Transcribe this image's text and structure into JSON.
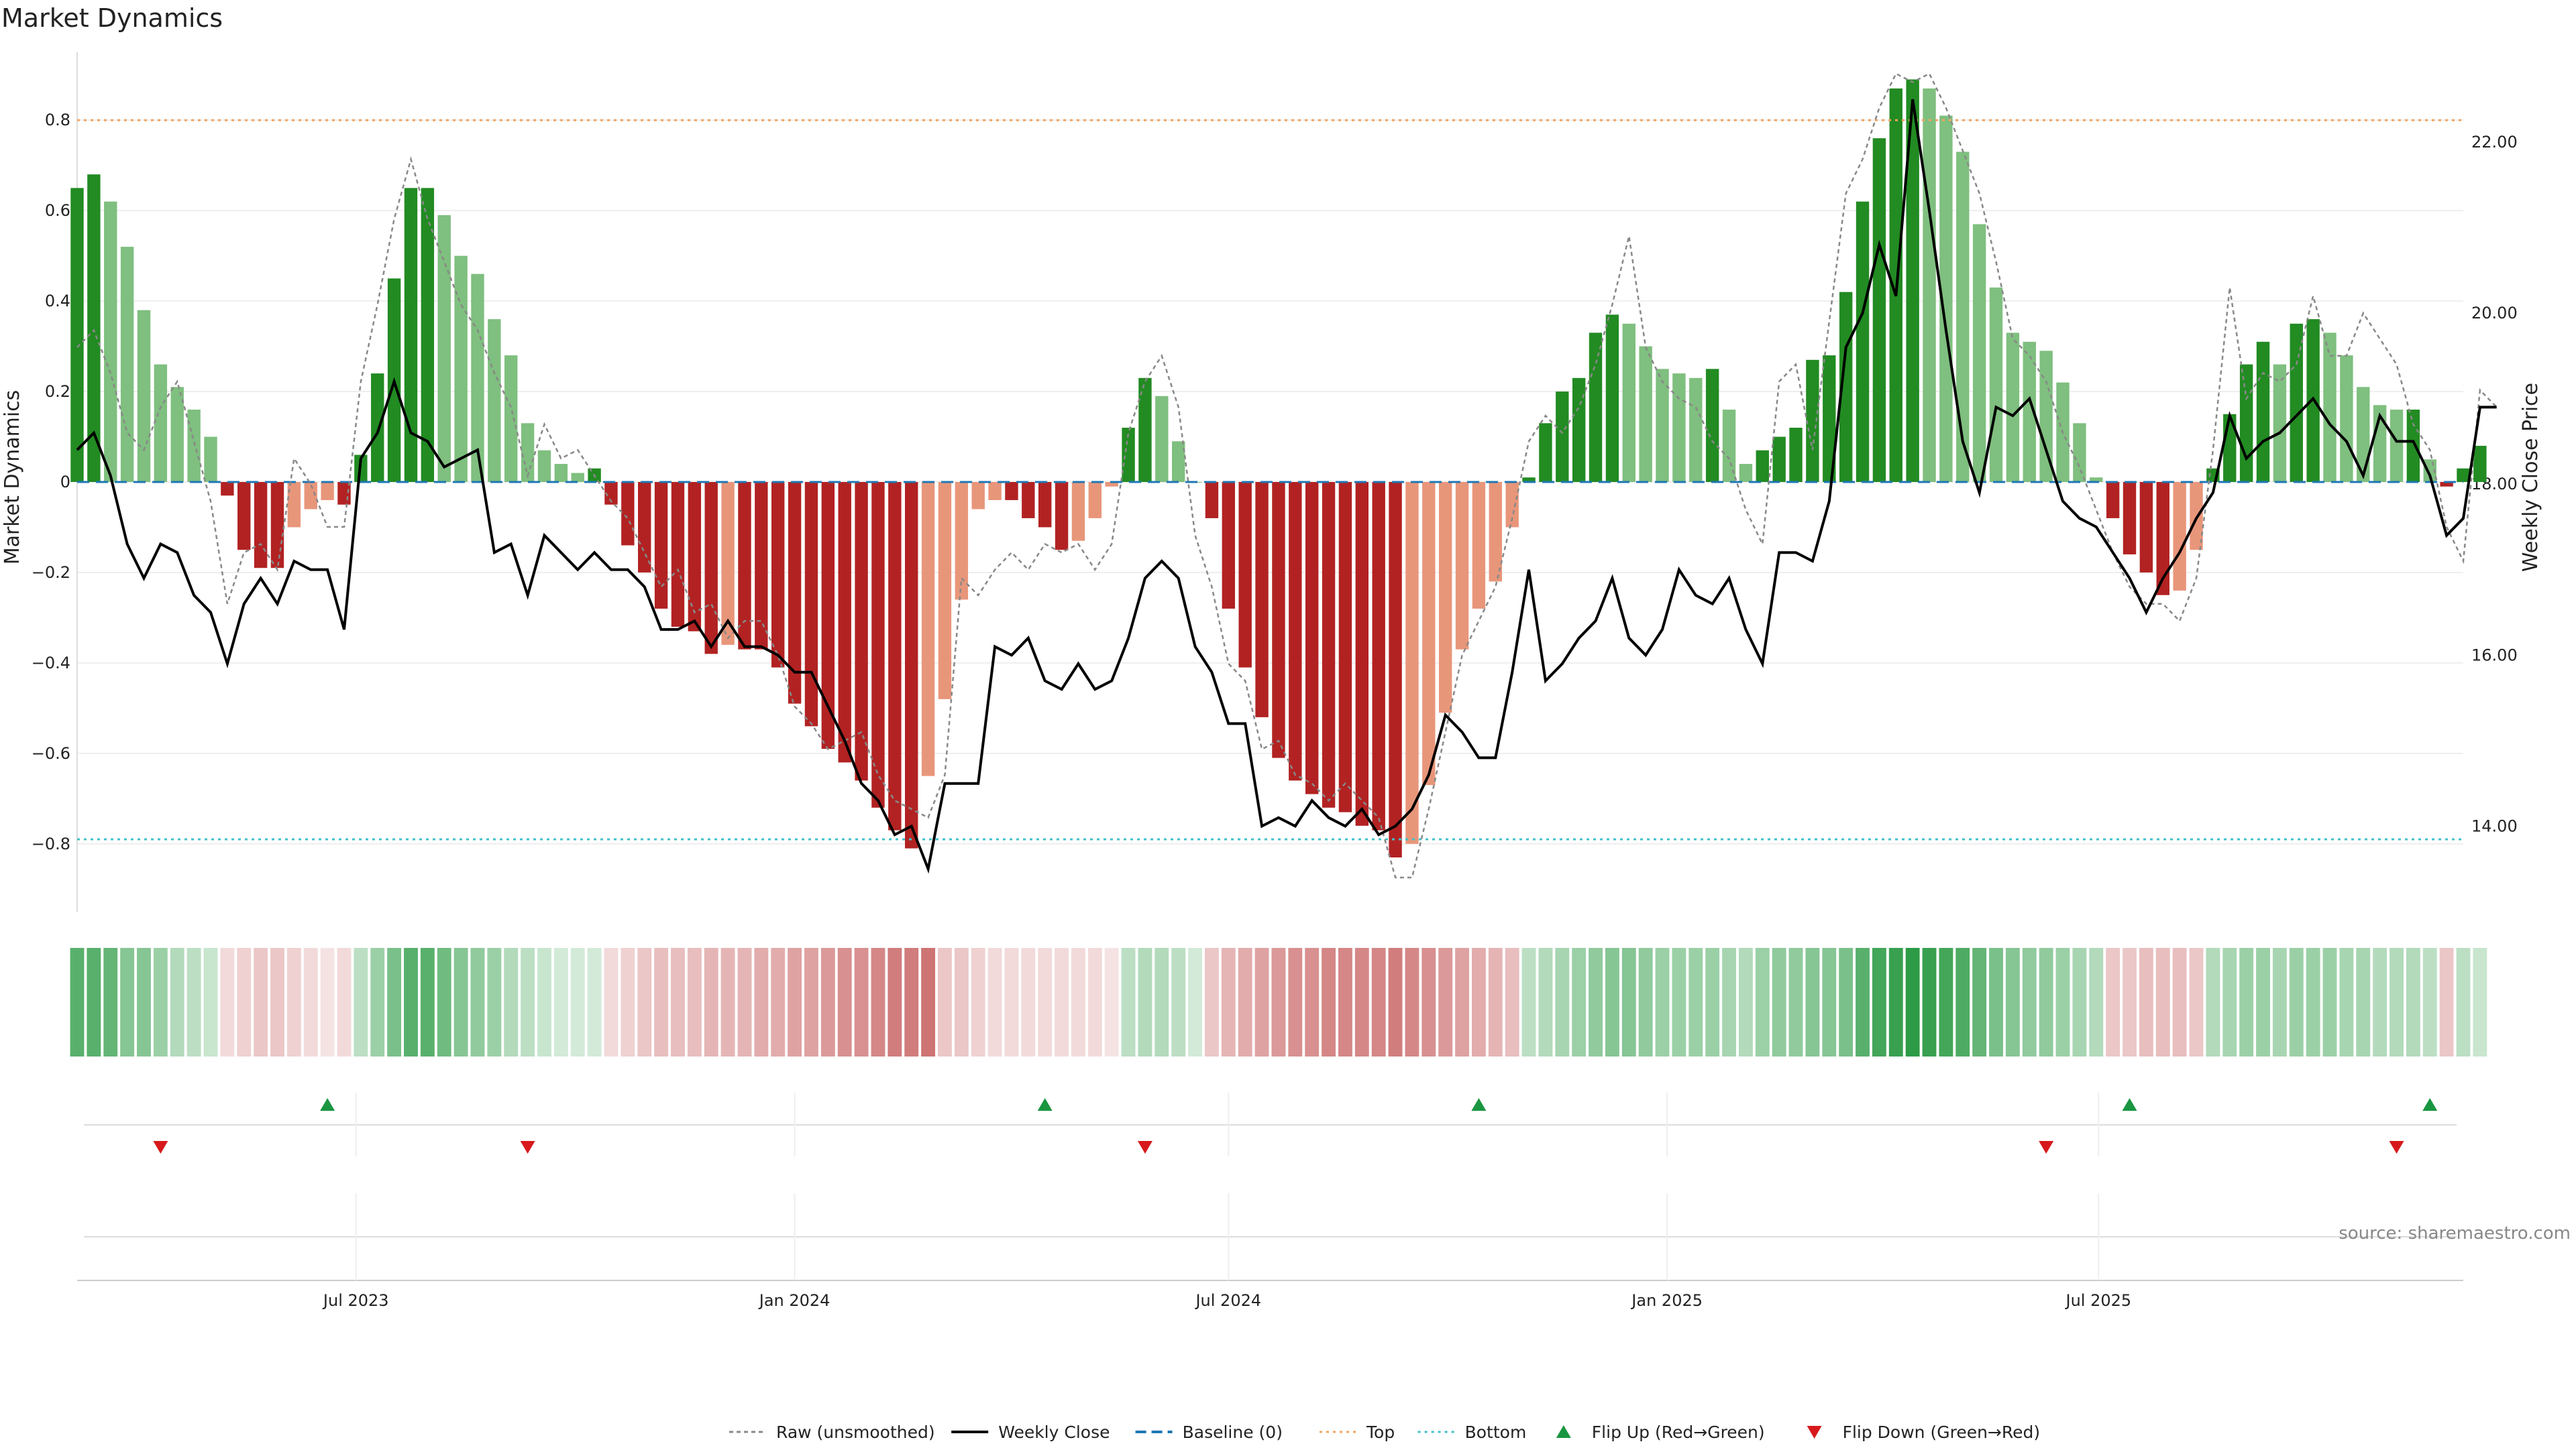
{
  "title": "Market Dynamics",
  "source_label": "source: sharemaestro.com",
  "colors": {
    "strong_green": "#228b22",
    "light_green": "#7fbf7f",
    "strong_red": "#b22222",
    "light_red": "#e8967a",
    "weekly_close": "#000000",
    "raw": "#888888",
    "baseline": "#1f77b4",
    "top": "#f4a460",
    "bottom": "#40c0c8",
    "flip_up": "#1a9641",
    "flip_down": "#d7191c"
  },
  "chart_data": {
    "type": "bar",
    "title": "Market Dynamics",
    "ylabel": "Market Dynamics",
    "y2label": "Weekly Close Price",
    "ylim": [
      -0.95,
      0.95
    ],
    "y2lim": [
      13.0,
      23.05
    ],
    "yticks": [
      -0.8,
      -0.6,
      -0.4,
      -0.2,
      0,
      0.2,
      0.4,
      0.6,
      0.8
    ],
    "ytick_labels": [
      "−0.8",
      "−0.6",
      "−0.4",
      "−0.2",
      "0",
      "0.2",
      "0.4",
      "0.6",
      "0.8"
    ],
    "y2ticks": [
      14,
      16,
      18,
      20,
      22
    ],
    "y2tick_labels": [
      "14.00",
      "16.00",
      "18.00",
      "20.00",
      "22.00"
    ],
    "x_start": "2023-03-06",
    "xtick_labels": [
      "Jul 2023",
      "Jan 2024",
      "Jul 2024",
      "Jan 2025",
      "Jul 2025"
    ],
    "xticks": [
      "2023-07-01",
      "2024-01-01",
      "2024-07-01",
      "2025-01-01",
      "2025-07-01"
    ],
    "x_end": "2025-12-01",
    "top_line": 0.8,
    "bottom_line": -0.79,
    "baseline": 0,
    "dynamics": [
      0.65,
      0.68,
      0.62,
      0.52,
      0.38,
      0.26,
      0.21,
      0.16,
      0.1,
      -0.03,
      -0.15,
      -0.19,
      -0.19,
      -0.1,
      -0.06,
      -0.04,
      -0.05,
      0.06,
      0.24,
      0.45,
      0.65,
      0.65,
      0.59,
      0.5,
      0.46,
      0.36,
      0.28,
      0.13,
      0.07,
      0.04,
      0.02,
      0.03,
      -0.05,
      -0.14,
      -0.2,
      -0.28,
      -0.32,
      -0.33,
      -0.38,
      -0.36,
      -0.37,
      -0.37,
      -0.41,
      -0.49,
      -0.54,
      -0.59,
      -0.62,
      -0.66,
      -0.72,
      -0.77,
      -0.81,
      -0.65,
      -0.48,
      -0.26,
      -0.06,
      -0.04,
      -0.04,
      -0.08,
      -0.1,
      -0.15,
      -0.13,
      -0.08,
      -0.01,
      0.12,
      0.23,
      0.19,
      0.09,
      0.0,
      -0.08,
      -0.28,
      -0.41,
      -0.52,
      -0.61,
      -0.66,
      -0.69,
      -0.72,
      -0.73,
      -0.76,
      -0.77,
      -0.83,
      -0.8,
      -0.67,
      -0.51,
      -0.37,
      -0.28,
      -0.22,
      -0.1,
      0.01,
      0.13,
      0.2,
      0.23,
      0.33,
      0.37,
      0.35,
      0.3,
      0.25,
      0.24,
      0.23,
      0.25,
      0.16,
      0.04,
      0.07,
      0.1,
      0.12,
      0.27,
      0.28,
      0.42,
      0.62,
      0.76,
      0.87,
      0.89,
      0.87,
      0.81,
      0.73,
      0.57,
      0.43,
      0.33,
      0.31,
      0.29,
      0.22,
      0.13,
      0.01,
      -0.08,
      -0.16,
      -0.2,
      -0.25,
      -0.24,
      -0.15,
      0.03,
      0.15,
      0.26,
      0.31,
      0.26,
      0.35,
      0.36,
      0.33,
      0.28,
      0.21,
      0.17,
      0.16,
      0.16,
      0.05,
      -0.01,
      0.03,
      0.08
    ],
    "weekly_close": [
      18.4,
      18.6,
      18.1,
      17.3,
      16.9,
      17.3,
      17.2,
      16.7,
      16.5,
      15.9,
      16.6,
      16.9,
      16.6,
      17.1,
      17.0,
      17.0,
      16.3,
      18.3,
      18.6,
      19.2,
      18.6,
      18.5,
      18.2,
      18.3,
      18.4,
      17.2,
      17.3,
      16.7,
      17.4,
      17.2,
      17.0,
      17.2,
      17.0,
      17.0,
      16.8,
      16.3,
      16.3,
      16.4,
      16.1,
      16.4,
      16.1,
      16.1,
      16.0,
      15.8,
      15.8,
      15.4,
      15.0,
      14.5,
      14.3,
      13.9,
      14.0,
      13.5,
      14.5,
      14.5,
      14.5,
      16.1,
      16.0,
      16.2,
      15.7,
      15.6,
      15.9,
      15.6,
      15.7,
      16.2,
      16.9,
      17.1,
      16.9,
      16.1,
      15.8,
      15.2,
      15.2,
      14.0,
      14.1,
      14.0,
      14.3,
      14.1,
      14.0,
      14.2,
      13.9,
      14.0,
      14.2,
      14.6,
      15.3,
      15.1,
      14.8,
      14.8,
      15.8,
      17.0,
      15.7,
      15.9,
      16.2,
      16.4,
      16.9,
      16.2,
      16.0,
      16.3,
      17.0,
      16.7,
      16.6,
      16.9,
      16.3,
      15.9,
      17.2,
      17.2,
      17.1,
      17.8,
      19.6,
      20.0,
      20.8,
      20.2,
      22.5,
      21.2,
      19.8,
      18.5,
      17.9,
      18.9,
      18.8,
      19.0,
      18.4,
      17.8,
      17.6,
      17.5,
      17.2,
      16.9,
      16.5,
      16.9,
      17.2,
      17.6,
      17.9,
      18.8,
      18.3,
      18.5,
      18.6,
      18.8,
      19.0,
      18.7,
      18.5,
      18.1,
      18.8,
      18.5,
      18.5,
      18.1,
      17.4,
      17.6,
      18.9,
      18.9
    ],
    "raw": [
      19.6,
      19.8,
      19.3,
      18.6,
      18.4,
      18.9,
      19.2,
      18.5,
      17.8,
      16.6,
      17.2,
      17.3,
      17.0,
      18.3,
      18.0,
      17.5,
      17.5,
      19.2,
      20.1,
      21.1,
      21.8,
      21.1,
      20.6,
      20.1,
      19.8,
      19.3,
      18.9,
      18.1,
      18.7,
      18.3,
      18.4,
      18.1,
      17.8,
      17.6,
      17.2,
      16.8,
      17.0,
      16.5,
      16.6,
      16.2,
      16.4,
      16.4,
      16.0,
      15.4,
      15.2,
      14.9,
      15.0,
      15.1,
      14.6,
      14.3,
      14.2,
      14.1,
      14.6,
      16.9,
      16.7,
      17.0,
      17.2,
      17.0,
      17.3,
      17.2,
      17.3,
      17.0,
      17.3,
      18.6,
      19.2,
      19.5,
      18.9,
      17.4,
      16.8,
      15.9,
      15.7,
      14.9,
      15.0,
      14.6,
      14.5,
      14.3,
      14.5,
      14.3,
      14.1,
      13.4,
      13.4,
      14.2,
      15.1,
      16.0,
      16.4,
      16.8,
      17.6,
      18.5,
      18.8,
      18.6,
      18.9,
      19.4,
      20.1,
      20.9,
      19.6,
      19.2,
      19.0,
      18.9,
      18.5,
      18.3,
      17.7,
      17.3,
      19.2,
      19.4,
      18.4,
      19.9,
      21.4,
      21.8,
      22.4,
      22.8,
      22.7,
      22.8,
      22.4,
      21.9,
      21.4,
      20.6,
      19.7,
      19.5,
      19.2,
      18.6,
      18.2,
      17.7,
      17.2,
      16.8,
      16.6,
      16.6,
      16.4,
      16.9,
      18.4,
      20.3,
      19.0,
      19.3,
      19.2,
      19.4,
      20.2,
      19.5,
      19.5,
      20.0,
      19.7,
      19.4,
      18.7,
      18.4,
      17.5,
      17.1,
      19.1,
      18.9
    ],
    "heat_levels": [
      0.75,
      0.75,
      0.7,
      0.55,
      0.55,
      0.45,
      0.35,
      0.3,
      0.25,
      0.2,
      0.25,
      0.3,
      0.3,
      0.25,
      0.2,
      0.15,
      0.2,
      0.3,
      0.45,
      0.6,
      0.75,
      0.75,
      0.65,
      0.55,
      0.5,
      0.45,
      0.35,
      0.3,
      0.25,
      0.2,
      0.2,
      0.2,
      0.2,
      0.25,
      0.3,
      0.35,
      0.35,
      0.35,
      0.4,
      0.4,
      0.4,
      0.45,
      0.45,
      0.5,
      0.5,
      0.55,
      0.6,
      0.6,
      0.65,
      0.7,
      0.7,
      0.75,
      0.3,
      0.3,
      0.25,
      0.2,
      0.2,
      0.2,
      0.2,
      0.2,
      0.2,
      0.2,
      0.15,
      0.3,
      0.35,
      0.35,
      0.3,
      0.2,
      0.3,
      0.4,
      0.45,
      0.5,
      0.55,
      0.6,
      0.6,
      0.65,
      0.65,
      0.65,
      0.65,
      0.7,
      0.65,
      0.6,
      0.55,
      0.5,
      0.45,
      0.4,
      0.35,
      0.3,
      0.35,
      0.4,
      0.45,
      0.5,
      0.55,
      0.55,
      0.5,
      0.45,
      0.45,
      0.45,
      0.45,
      0.4,
      0.35,
      0.45,
      0.5,
      0.5,
      0.55,
      0.55,
      0.6,
      0.75,
      0.85,
      0.9,
      0.95,
      0.9,
      0.85,
      0.8,
      0.7,
      0.6,
      0.55,
      0.5,
      0.5,
      0.45,
      0.4,
      0.35,
      0.3,
      0.3,
      0.35,
      0.35,
      0.35,
      0.3,
      0.35,
      0.4,
      0.45,
      0.45,
      0.4,
      0.45,
      0.45,
      0.45,
      0.4,
      0.4,
      0.35,
      0.35,
      0.35,
      0.3,
      0.3,
      0.3,
      0.25
    ],
    "flips_up": [
      "2023-06-19",
      "2024-04-15",
      "2024-10-14",
      "2025-07-14",
      "2025-11-17"
    ],
    "flips_down": [
      "2023-04-10",
      "2023-09-11",
      "2024-05-27",
      "2025-06-09",
      "2025-11-03"
    ],
    "legend": [
      {
        "label": "Raw (unsmoothed)",
        "kind": "raw"
      },
      {
        "label": "Weekly Close",
        "kind": "close"
      },
      {
        "label": "Baseline (0)",
        "kind": "baseline"
      },
      {
        "label": "Top",
        "kind": "top"
      },
      {
        "label": "Bottom",
        "kind": "bottom"
      },
      {
        "label": "Flip Up (Red→Green)",
        "kind": "flip_up"
      },
      {
        "label": "Flip Down (Green→Red)",
        "kind": "flip_down"
      }
    ]
  }
}
